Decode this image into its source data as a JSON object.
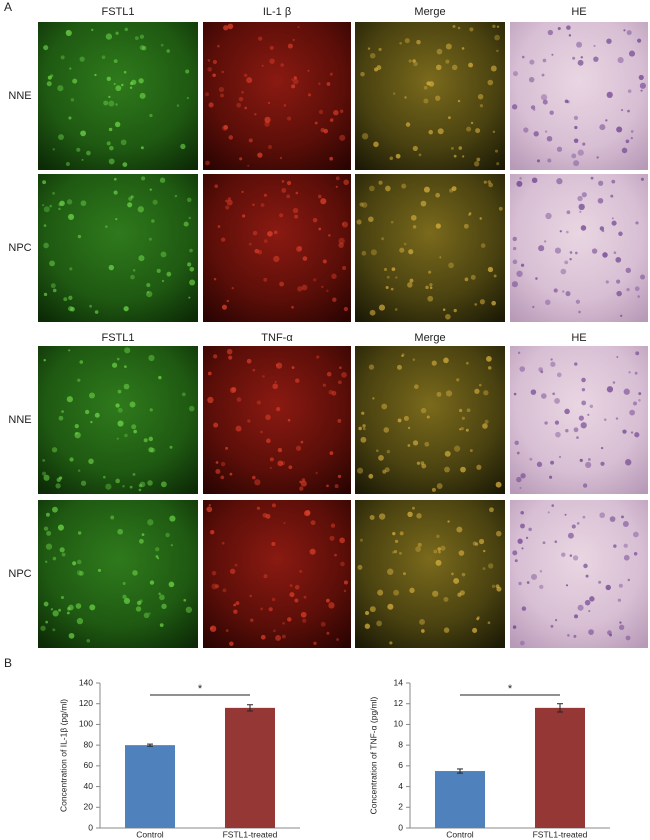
{
  "panel_a": {
    "label": "A",
    "groups": [
      {
        "columns": [
          "FSTL1",
          "IL-1 β",
          "Merge",
          "HE"
        ],
        "rows": [
          "NNE",
          "NPC"
        ]
      },
      {
        "columns": [
          "FSTL1",
          "TNF-α",
          "Merge",
          "HE"
        ],
        "rows": [
          "NNE",
          "NPC"
        ]
      }
    ]
  },
  "panel_b": {
    "label": "B"
  },
  "chart_data": [
    {
      "type": "bar",
      "y_label": "Concentration of IL-1β (pg/ml)",
      "categories": [
        "Control",
        "FSTL1-treated"
      ],
      "values": [
        80,
        116
      ],
      "errors": [
        1,
        3
      ],
      "colors": [
        "#4f81bd",
        "#953735"
      ],
      "ylim": [
        0,
        140
      ],
      "yticks": [
        0,
        20,
        40,
        60,
        80,
        100,
        120,
        140
      ],
      "annotation": "*"
    },
    {
      "type": "bar",
      "y_label": "Concentration of TNF-α (pg/ml)",
      "categories": [
        "Control",
        "FSTL1-treated"
      ],
      "values": [
        5.5,
        11.6
      ],
      "errors": [
        0.2,
        0.4
      ],
      "colors": [
        "#4f81bd",
        "#953735"
      ],
      "ylim": [
        0,
        14
      ],
      "yticks": [
        0,
        2,
        4,
        6,
        8,
        10,
        12,
        14
      ],
      "annotation": "*"
    }
  ]
}
